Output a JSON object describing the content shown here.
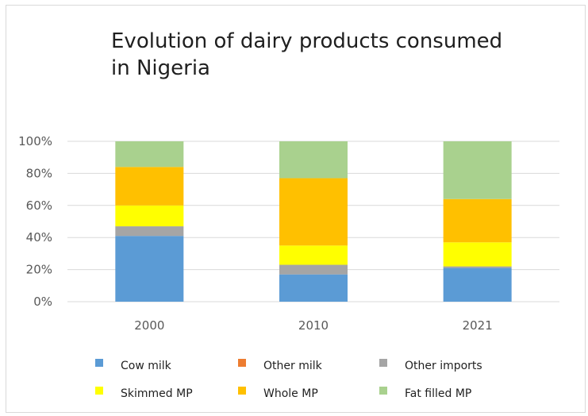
{
  "chart_data": {
    "type": "bar",
    "stacked": "percent",
    "title": "Evolution of dairy products consumed in Nigeria",
    "categories": [
      "2000",
      "2010",
      "2021"
    ],
    "series": [
      {
        "name": "Cow milk",
        "color": "#5b9bd5",
        "values": [
          41,
          17,
          21
        ]
      },
      {
        "name": "Other milk",
        "color": "#ed7d31",
        "values": [
          0,
          0,
          0
        ]
      },
      {
        "name": "Other imports",
        "color": "#a5a5a5",
        "values": [
          6,
          6,
          1
        ]
      },
      {
        "name": "Skimmed MP",
        "color": "#ffff00",
        "values": [
          13,
          12,
          15
        ]
      },
      {
        "name": "Whole MP",
        "color": "#ffc000",
        "values": [
          24,
          42,
          27
        ]
      },
      {
        "name": "Fat filled MP",
        "color": "#a9d18e",
        "values": [
          16,
          23,
          36
        ]
      }
    ],
    "ylim": [
      0,
      100
    ],
    "y_ticks": [
      "0%",
      "20%",
      "40%",
      "60%",
      "80%",
      "100%"
    ],
    "grid": true,
    "legend": "bottom"
  }
}
